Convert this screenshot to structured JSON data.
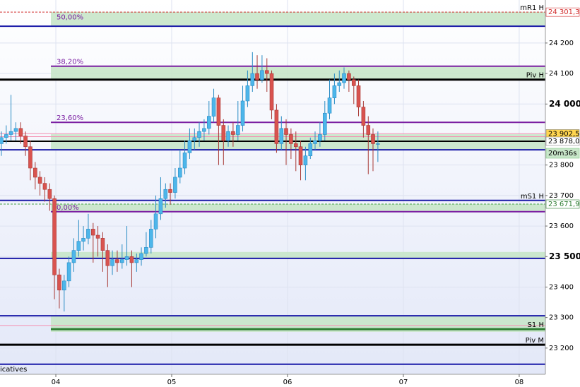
{
  "chart_data": {
    "type": "candlestick",
    "footer": "icatives",
    "timer": "20m36s",
    "up_color": "#4db6ea",
    "up_edge": "#2b8cc4",
    "down_color": "#d9534f",
    "down_edge": "#a83a36",
    "xlim": [
      3.518,
      8.226
    ],
    "ylim": [
      23114,
      24341
    ],
    "xticks": [
      {
        "value": 4,
        "label": "04"
      },
      {
        "value": 5,
        "label": "05"
      },
      {
        "value": 6,
        "label": "06"
      },
      {
        "value": 7,
        "label": "07"
      },
      {
        "value": 8,
        "label": "08"
      }
    ],
    "yticks": [
      {
        "value": 24200,
        "label": "24 200"
      },
      {
        "value": 24100,
        "label": "24 100"
      },
      {
        "value": 24000,
        "label": "24 000",
        "bold": true
      },
      {
        "value": 23800,
        "label": "23 800"
      },
      {
        "value": 23700,
        "label": "23 700"
      },
      {
        "value": 23600,
        "label": "23 600"
      },
      {
        "value": 23500,
        "label": "23 500",
        "bold": true
      },
      {
        "value": 23400,
        "label": "23 400"
      },
      {
        "value": 23300,
        "label": "23 300"
      },
      {
        "value": 23200,
        "label": "23 200"
      }
    ],
    "grid": true,
    "x": [
      3.53,
      3.572,
      3.613,
      3.655,
      3.697,
      3.738,
      3.78,
      3.822,
      3.863,
      3.905,
      3.947,
      3.988,
      4.03,
      4.072,
      4.113,
      4.155,
      4.197,
      4.238,
      4.28,
      4.322,
      4.363,
      4.405,
      4.447,
      4.488,
      4.53,
      4.572,
      4.613,
      4.655,
      4.697,
      4.738,
      4.78,
      4.822,
      4.863,
      4.905,
      4.947,
      4.988,
      5.03,
      5.072,
      5.113,
      5.155,
      5.197,
      5.238,
      5.28,
      5.322,
      5.363,
      5.405,
      5.447,
      5.488,
      5.53,
      5.572,
      5.613,
      5.655,
      5.697,
      5.738,
      5.78,
      5.822,
      5.863,
      5.905,
      5.947,
      5.988,
      6.03,
      6.072,
      6.113,
      6.155,
      6.197,
      6.238,
      6.28,
      6.322,
      6.363,
      6.405,
      6.447,
      6.488,
      6.53,
      6.572,
      6.613,
      6.655,
      6.697,
      6.738,
      6.78
    ],
    "open": [
      23870,
      23890,
      23900,
      23910,
      23920,
      23895,
      23860,
      23790,
      23760,
      23740,
      23720,
      23690,
      23440,
      23390,
      23420,
      23480,
      23520,
      23550,
      23560,
      23590,
      23570,
      23560,
      23520,
      23470,
      23490,
      23480,
      23490,
      23500,
      23480,
      23490,
      23510,
      23530,
      23590,
      23640,
      23690,
      23720,
      23710,
      23760,
      23790,
      23840,
      23880,
      23890,
      23910,
      23920,
      23960,
      24020,
      23930,
      23880,
      23910,
      23900,
      23930,
      24010,
      24060,
      24100,
      24080,
      24110,
      24100,
      23980,
      23870,
      23920,
      23900,
      23870,
      23860,
      23800,
      23830,
      23870,
      23880,
      23900,
      23970,
      24020,
      24060,
      24070,
      24100,
      24080,
      24060,
      23990,
      23930,
      23900,
      23870
    ],
    "high": [
      23910,
      23930,
      24030,
      23940,
      23940,
      23910,
      23880,
      23810,
      23780,
      23760,
      23740,
      23700,
      23460,
      23440,
      23500,
      23560,
      23620,
      23600,
      23640,
      23610,
      23600,
      23580,
      23540,
      23520,
      23520,
      23540,
      23600,
      23520,
      23510,
      23530,
      23580,
      23620,
      23700,
      23760,
      23740,
      23740,
      23790,
      23850,
      23880,
      23920,
      23920,
      23940,
      23950,
      24010,
      24050,
      24030,
      23950,
      23930,
      23940,
      24010,
      24060,
      24110,
      24170,
      24160,
      24160,
      24150,
      24110,
      24000,
      23960,
      23950,
      23920,
      23910,
      23880,
      23860,
      23890,
      23910,
      23940,
      24010,
      24080,
      24100,
      24110,
      24120,
      24110,
      24090,
      24080,
      24010,
      23960,
      23920,
      23910
    ],
    "low": [
      23830,
      23870,
      23880,
      23880,
      23870,
      23830,
      23750,
      23720,
      23700,
      23680,
      23650,
      23360,
      23330,
      23320,
      23400,
      23450,
      23500,
      23520,
      23540,
      23480,
      23500,
      23450,
      23400,
      23440,
      23450,
      23460,
      23470,
      23400,
      23450,
      23470,
      23500,
      23510,
      23560,
      23620,
      23660,
      23670,
      23690,
      23740,
      23770,
      23820,
      23850,
      23860,
      23880,
      23900,
      23940,
      23800,
      23800,
      23860,
      23860,
      23880,
      23910,
      23990,
      24040,
      24050,
      24070,
      24040,
      23950,
      23840,
      23850,
      23800,
      23820,
      23780,
      23750,
      23750,
      23820,
      23850,
      23860,
      23880,
      23950,
      24000,
      24040,
      24050,
      24040,
      24000,
      23960,
      23890,
      23770,
      23780,
      23810
    ],
    "close": [
      23890,
      23900,
      23910,
      23920,
      23895,
      23860,
      23790,
      23760,
      23740,
      23720,
      23690,
      23440,
      23390,
      23420,
      23480,
      23520,
      23550,
      23560,
      23590,
      23570,
      23560,
      23520,
      23470,
      23490,
      23480,
      23490,
      23500,
      23480,
      23490,
      23510,
      23530,
      23590,
      23640,
      23690,
      23720,
      23710,
      23760,
      23790,
      23840,
      23880,
      23890,
      23910,
      23920,
      23960,
      24020,
      23930,
      23880,
      23910,
      23900,
      23930,
      24010,
      24060,
      24100,
      24080,
      24110,
      24100,
      23980,
      23870,
      23920,
      23900,
      23870,
      23860,
      23800,
      23830,
      23870,
      23880,
      23900,
      23970,
      24020,
      24060,
      24070,
      24100,
      24080,
      24060,
      23990,
      23930,
      23900,
      23870,
      23870
    ],
    "zones": [
      {
        "from": 24255,
        "to": 24302,
        "x_from": 3.957
      },
      {
        "from": 24080,
        "to": 24124,
        "x_from": 3.957
      },
      {
        "from": 23850,
        "to": 23901,
        "x_from": 3.957
      },
      {
        "from": 23647,
        "to": 23672,
        "x_from": 3.957
      },
      {
        "from": 23494,
        "to": 23515,
        "x_from": 3.957
      },
      {
        "from": 23253,
        "to": 23306,
        "x_from": 3.957
      }
    ],
    "zone_color": "#c8e6c9",
    "levels": [
      {
        "value": 24301.3,
        "color": "#d32f2f",
        "dash": true,
        "width": 1,
        "label": "mR1 H",
        "side": "right"
      },
      {
        "value": 24270,
        "color": "#c8e6c9",
        "width": 0,
        "label": "50,00%",
        "side": "left"
      },
      {
        "value": 24255,
        "color": "#1a1aa8",
        "width": 2
      },
      {
        "value": 24124,
        "color": "#7b1fa2",
        "width": 2,
        "label": "38,20%",
        "side": "left",
        "x_from": 3.957
      },
      {
        "value": 24080,
        "color": "#000000",
        "width": 3,
        "label": "Piv H",
        "side": "right"
      },
      {
        "value": 23940,
        "color": "#7b1fa2",
        "width": 2,
        "label": "23,60%",
        "side": "left",
        "x_from": 3.957
      },
      {
        "value": 23903,
        "color": "#f48fb1",
        "width": 1
      },
      {
        "value": 23893,
        "color": "#f48fb1",
        "width": 1
      },
      {
        "value": 23878,
        "color": "#000000",
        "width": 2
      },
      {
        "value": 23850,
        "color": "#1a1aa8",
        "width": 2
      },
      {
        "value": 23684,
        "color": "#1a1aa8",
        "width": 2,
        "label": "mS1 H",
        "side": "right"
      },
      {
        "value": 23671.9,
        "color": "#43a047",
        "dash": true,
        "width": 1
      },
      {
        "value": 23647,
        "color": "#7b1fa2",
        "width": 2,
        "label": "0,00%",
        "side": "left",
        "x_from": 3.957
      },
      {
        "value": 23494,
        "color": "#1a1aa8",
        "width": 2
      },
      {
        "value": 23306,
        "color": "#1a1aa8",
        "width": 2
      },
      {
        "value": 23274,
        "color": "#f48fb1",
        "width": 1
      },
      {
        "value": 23262,
        "color": "#2e7d32",
        "width": 3,
        "label": "S1 H",
        "side": "right",
        "x_from": 3.957
      },
      {
        "value": 23211,
        "color": "#000000",
        "width": 3,
        "label": "Piv M",
        "side": "right"
      },
      {
        "value": 23147,
        "color": "#1a1aa8",
        "width": 2
      }
    ],
    "price_labels": [
      {
        "value": 24301.3,
        "label": "24 301,3",
        "bg": "#ffffff",
        "fg": "#d32f2f"
      },
      {
        "value": 23902.5,
        "label": "23 902,5",
        "bg": "#ffd54f",
        "fg": "#000000"
      },
      {
        "value": 23878,
        "label": "23 878,0",
        "bg": "#ffffff",
        "fg": "#000000"
      },
      {
        "value": 23671.9,
        "label": "23 671,9",
        "bg": "#ffffff",
        "fg": "#2e7d32"
      }
    ]
  }
}
